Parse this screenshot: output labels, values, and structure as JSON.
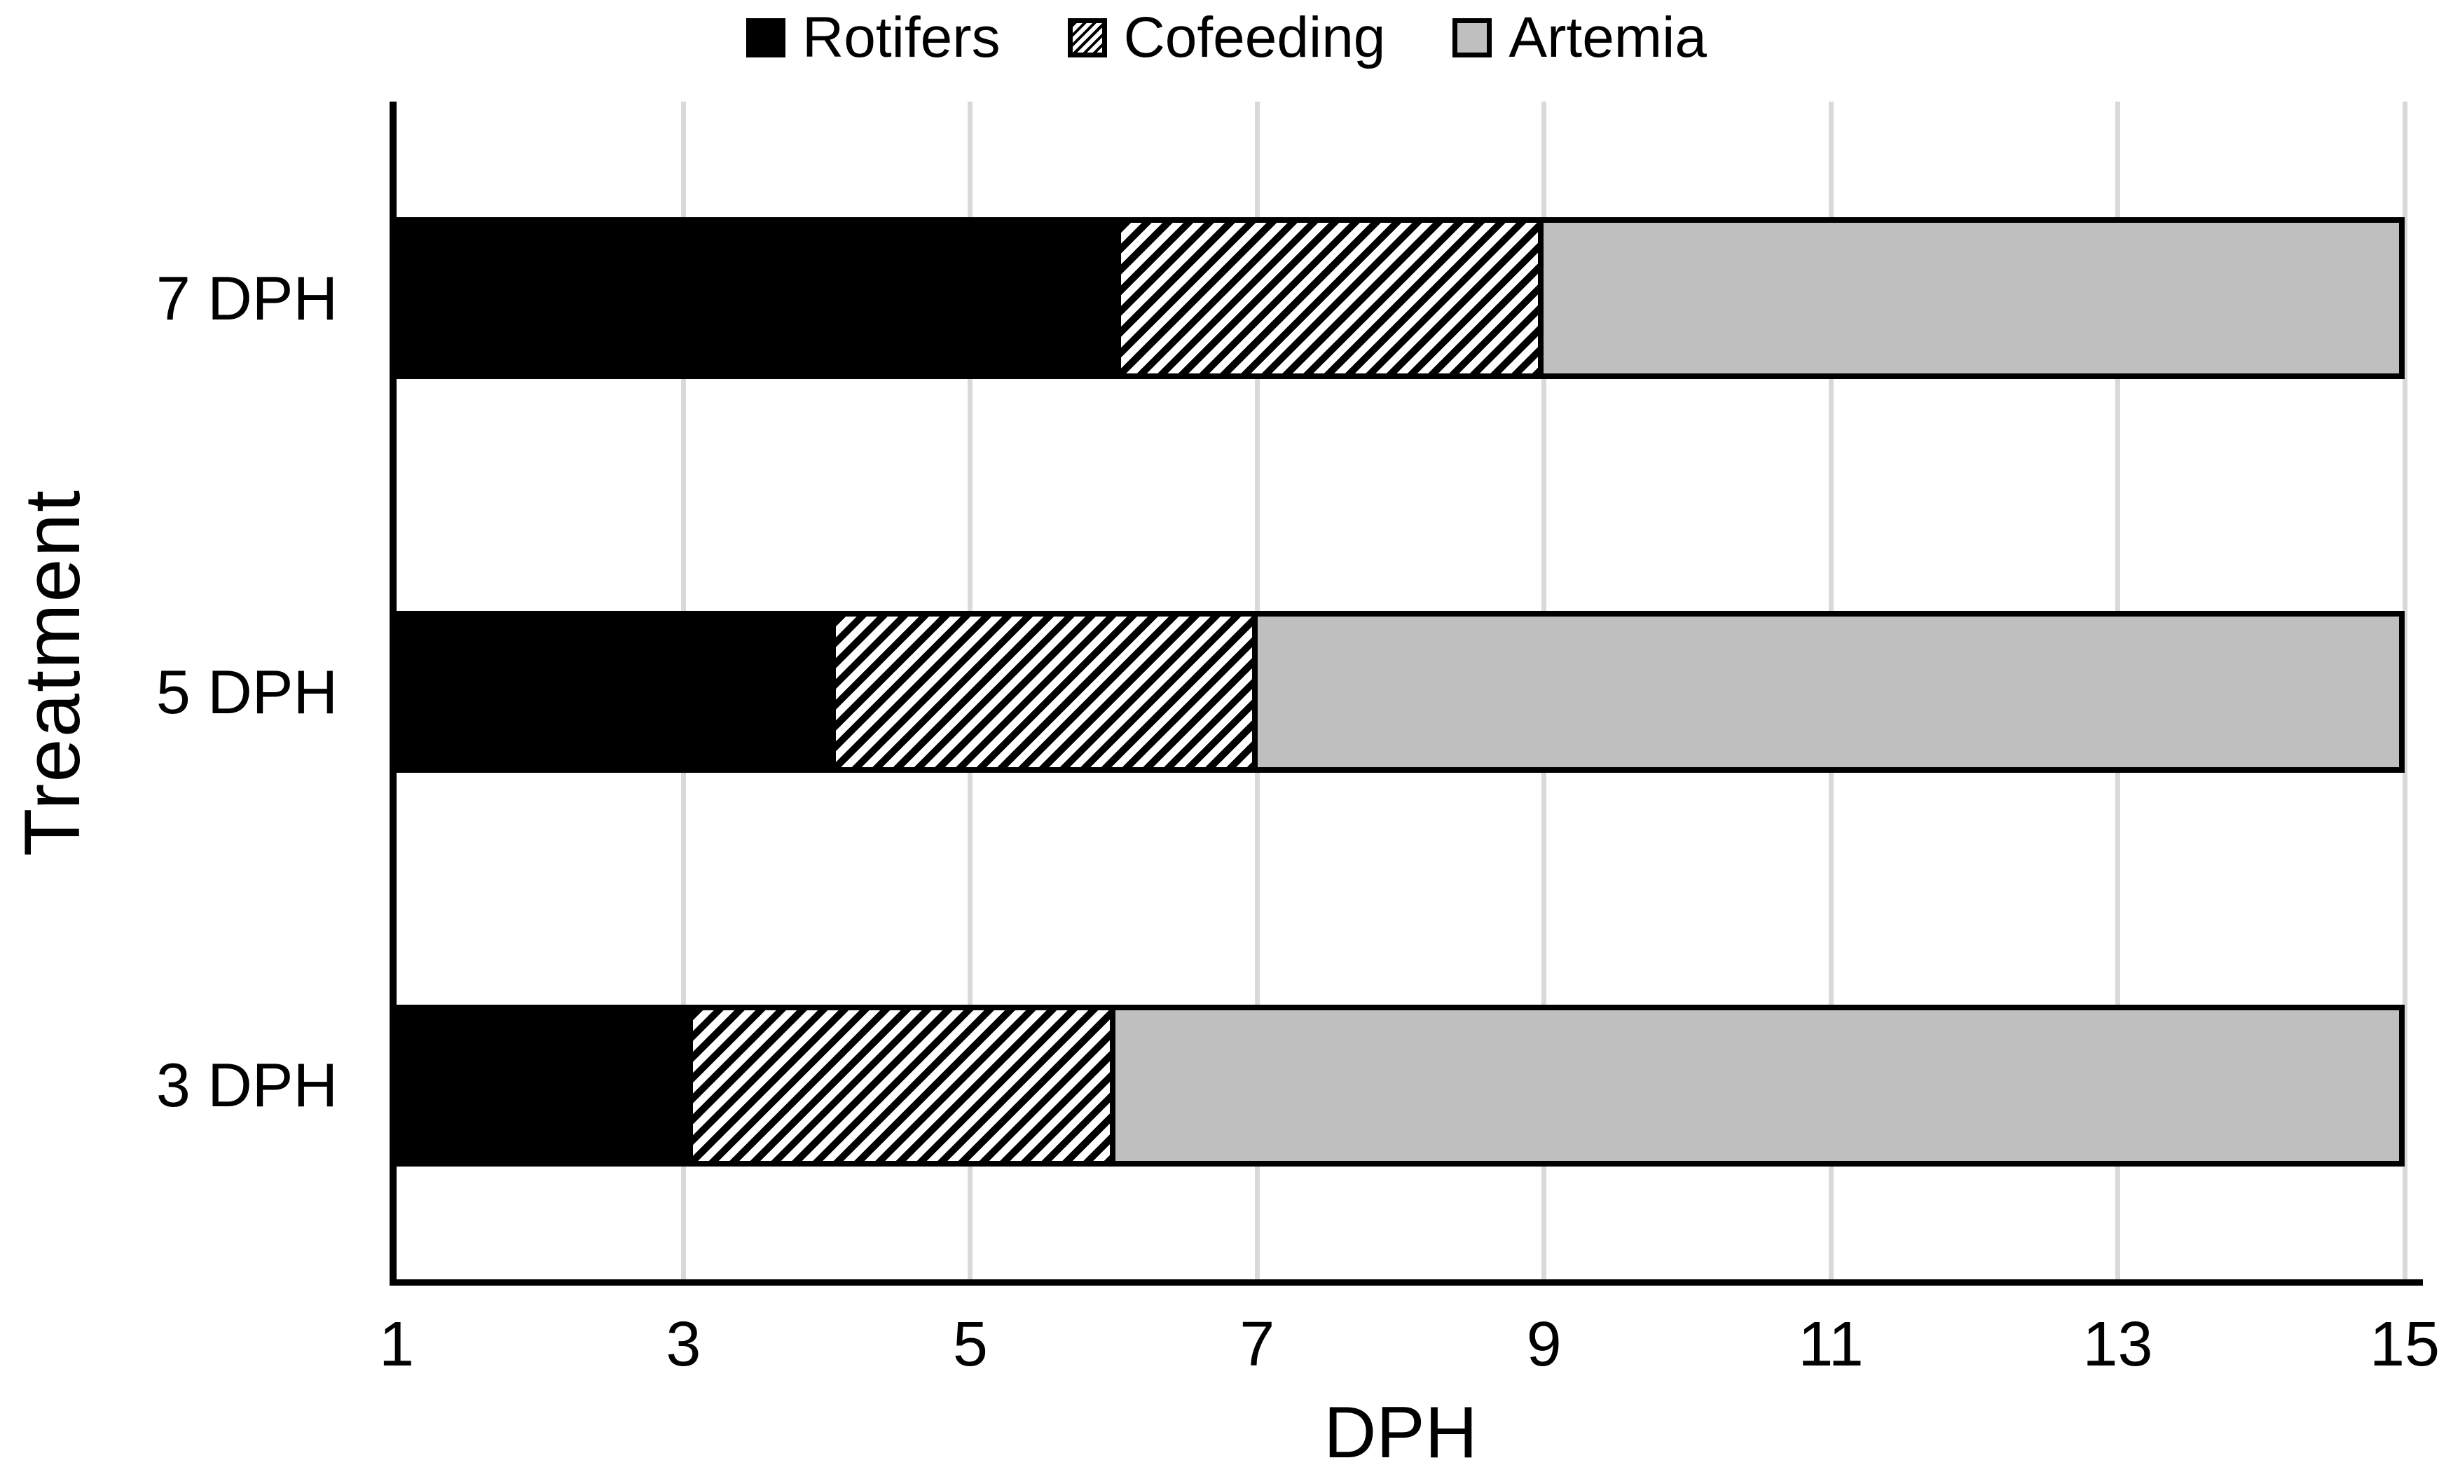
{
  "figure": {
    "background": "#ffffff",
    "text_color": "#000000"
  },
  "legend": {
    "position": "top-center",
    "items": [
      {
        "label": "Rotifers",
        "swatch": "solid-black"
      },
      {
        "label": "Cofeeding",
        "swatch": "diagonal-hatch"
      },
      {
        "label": "Artemia",
        "swatch": "solid-gray"
      }
    ]
  },
  "colors": {
    "bar_black": "#000000",
    "bar_gray": "#bfbfbf",
    "hatch_foreground": "#000000",
    "hatch_background": "#ffffff",
    "gridline": "#d9d9d9",
    "outline": "#000000",
    "background": "#ffffff"
  },
  "chart_data": {
    "type": "bar",
    "orientation": "horizontal",
    "stacked": true,
    "title": "",
    "xlabel": "DPH",
    "ylabel": "Treatment",
    "xlim": [
      1,
      15
    ],
    "xticks": [
      1,
      3,
      5,
      7,
      9,
      11,
      13,
      15
    ],
    "grid": {
      "vertical_gridlines_at_ticks": true,
      "horizontal_gridlines": false,
      "color": "#d9d9d9"
    },
    "legend_position": "top",
    "categories": [
      "7 DPH",
      "5 DPH",
      "3 DPH"
    ],
    "series": [
      {
        "name": "Rotifers",
        "pattern": "solid-black",
        "fill": "#000000"
      },
      {
        "name": "Cofeeding",
        "pattern": "diagonal-hatch",
        "fill": "black-diagonal-stripes-on-white"
      },
      {
        "name": "Artemia",
        "pattern": "solid-gray",
        "fill": "#bfbfbf"
      }
    ],
    "rows": [
      {
        "category": "7 DPH",
        "segments": [
          {
            "series": "Rotifers",
            "from": 1,
            "to": 6
          },
          {
            "series": "Cofeeding",
            "from": 6,
            "to": 9
          },
          {
            "series": "Artemia",
            "from": 9,
            "to": 15
          }
        ]
      },
      {
        "category": "5 DPH",
        "segments": [
          {
            "series": "Rotifers",
            "from": 1,
            "to": 4
          },
          {
            "series": "Cofeeding",
            "from": 4,
            "to": 7
          },
          {
            "series": "Artemia",
            "from": 7,
            "to": 15
          }
        ]
      },
      {
        "category": "3 DPH",
        "segments": [
          {
            "series": "Rotifers",
            "from": 1,
            "to": 3
          },
          {
            "series": "Cofeeding",
            "from": 3,
            "to": 6
          },
          {
            "series": "Artemia",
            "from": 6,
            "to": 15
          }
        ]
      }
    ]
  }
}
